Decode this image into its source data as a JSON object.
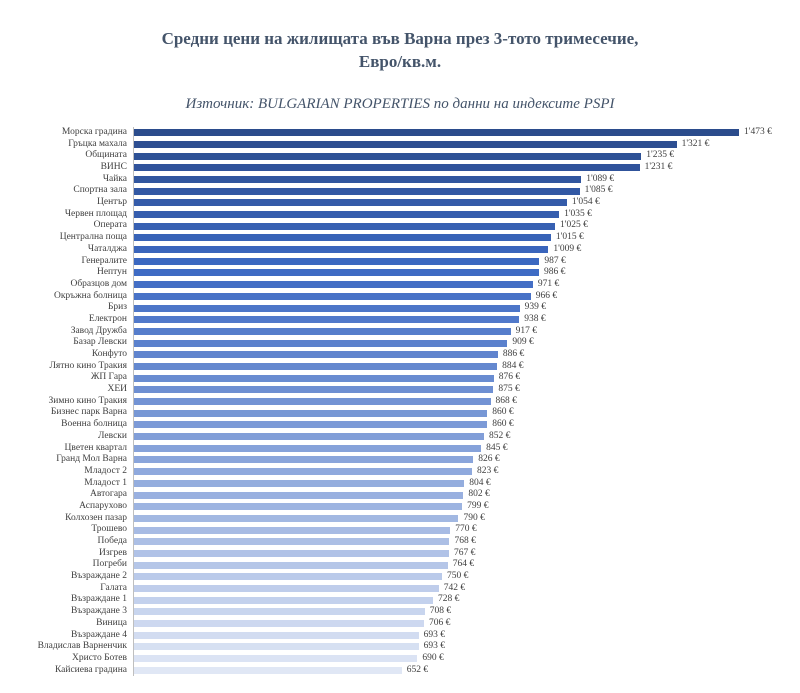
{
  "title": "Средни цени на жилищата във Варна през 3-тото тримесечие,\nЕвро/кв.м.",
  "subtitle": "Източник: BULGARIAN PROPERTIES по данни на индексите PSPI",
  "chart_data": {
    "type": "bar",
    "orientation": "horizontal",
    "title": "Средни цени на жилищата във Варна през 3-тото тримесечие, Евро/кв.м.",
    "subtitle": "Източник: BULGARIAN PROPERTIES по данни на индексите PSPI",
    "value_suffix": " €",
    "xlim": [
      0,
      1500
    ],
    "grid": false,
    "legend": false,
    "colors": {
      "hue": 220,
      "saturation": 53,
      "lightness_start": 36,
      "lightness_end": 92,
      "axis_line": "#BFBFBF",
      "label_text": "#404040",
      "title_text": "#44546A"
    },
    "categories": [
      "Морска градина",
      "Гръцка махала",
      "Общината",
      "ВИНС",
      "Чайка",
      "Спортна зала",
      "Център",
      "Червен площад",
      "Операта",
      "Централна поща",
      "Чаталджа",
      "Генералите",
      "Нептун",
      "Образцов дом",
      "Окръжна болница",
      "Бриз",
      "Електрон",
      "Завод Дружба",
      "Базар Левски",
      "Конфуто",
      "Лятно кино Тракия",
      "ЖП Гара",
      "ХЕИ",
      "Зимно кино Тракия",
      "Бизнес парк Варна",
      "Военна болница",
      "Левски",
      "Цветен квартал",
      "Гранд Мол Варна",
      "Младост 2",
      "Младост 1",
      "Автогара",
      "Аспарухово",
      "Колхозен пазар",
      "Трошево",
      "Победа",
      "Изгрев",
      "Погреби",
      "Възраждане 2",
      "Галата",
      "Възраждане 1",
      "Възраждане 3",
      "Виница",
      "Възраждане 4",
      "Владислав Варненчик",
      "Христо Ботев",
      "Кайсиева градина"
    ],
    "values": [
      1473,
      1321,
      1235,
      1231,
      1089,
      1085,
      1054,
      1035,
      1025,
      1015,
      1009,
      987,
      986,
      971,
      966,
      939,
      938,
      917,
      909,
      886,
      884,
      876,
      875,
      868,
      860,
      860,
      852,
      845,
      826,
      823,
      804,
      802,
      799,
      790,
      770,
      768,
      767,
      764,
      750,
      742,
      728,
      708,
      706,
      693,
      693,
      690,
      652
    ]
  }
}
